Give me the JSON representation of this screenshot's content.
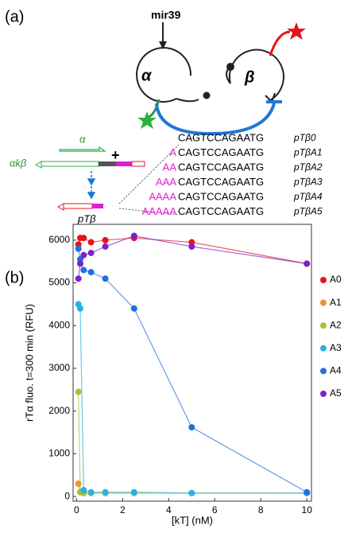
{
  "panel_a": {
    "label": "(a)",
    "input": "mir39",
    "left_node": "α",
    "right_node": "β",
    "strand_alpha": "α",
    "strand_akb": "αkβ",
    "strand_ptb": "pTβ",
    "sequences": [
      {
        "seq": "CAGTCCAGAATG",
        "name": "pTβ0"
      },
      {
        "prefix": "A",
        "seq": "CAGTCCAGAATG",
        "name": "pTβA1"
      },
      {
        "prefix": "AA",
        "seq": "CAGTCCAGAATG",
        "name": "pTβA2"
      },
      {
        "prefix": "AAA",
        "seq": "CAGTCCAGAATG",
        "name": "pTβA3"
      },
      {
        "prefix": "AAAA",
        "seq": "CAGTCCAGAATG",
        "name": "pTβA4"
      },
      {
        "prefix": "AAAAA",
        "seq": "CAGTCCAGAATG",
        "name": "pTβA5"
      }
    ]
  },
  "chart_data": {
    "type": "scatter",
    "panel_label": "(b)",
    "x_label": "[kT] (nM)",
    "y_label": "rTα fluo. t=300 min (RFU)",
    "x": [
      0.08,
      0.16,
      0.31,
      0.63,
      1.25,
      2.5,
      5,
      10
    ],
    "series": [
      {
        "name": "A0",
        "color": "#e8141c",
        "values": [
          5900,
          6050,
          6050,
          5950,
          6000,
          6050,
          5950,
          5450
        ]
      },
      {
        "name": "A1",
        "color": "#f4902a",
        "values": [
          300,
          100,
          80,
          80,
          80,
          80,
          80,
          80
        ]
      },
      {
        "name": "A2",
        "color": "#9ec43a",
        "values": [
          2450,
          100,
          80,
          80,
          80,
          80,
          80,
          80
        ]
      },
      {
        "name": "A3",
        "color": "#29b0e8",
        "values": [
          4500,
          4400,
          150,
          100,
          100,
          100,
          80,
          80
        ]
      },
      {
        "name": "A4",
        "color": "#1f6fe0",
        "values": [
          5800,
          5550,
          5300,
          5250,
          5100,
          4400,
          1620,
          100
        ]
      },
      {
        "name": "A5",
        "color": "#7b22c8",
        "values": [
          5100,
          5450,
          5650,
          5700,
          5850,
          6100,
          5850,
          5450
        ]
      }
    ],
    "xlim": [
      -0.15,
      10.2
    ],
    "ylim": [
      -110,
      6370
    ],
    "xticks": [
      0,
      2,
      4,
      6,
      8,
      10
    ],
    "yticks": [
      0,
      1000,
      2000,
      3000,
      4000,
      5000,
      6000
    ],
    "grid": false,
    "legend": "right"
  }
}
